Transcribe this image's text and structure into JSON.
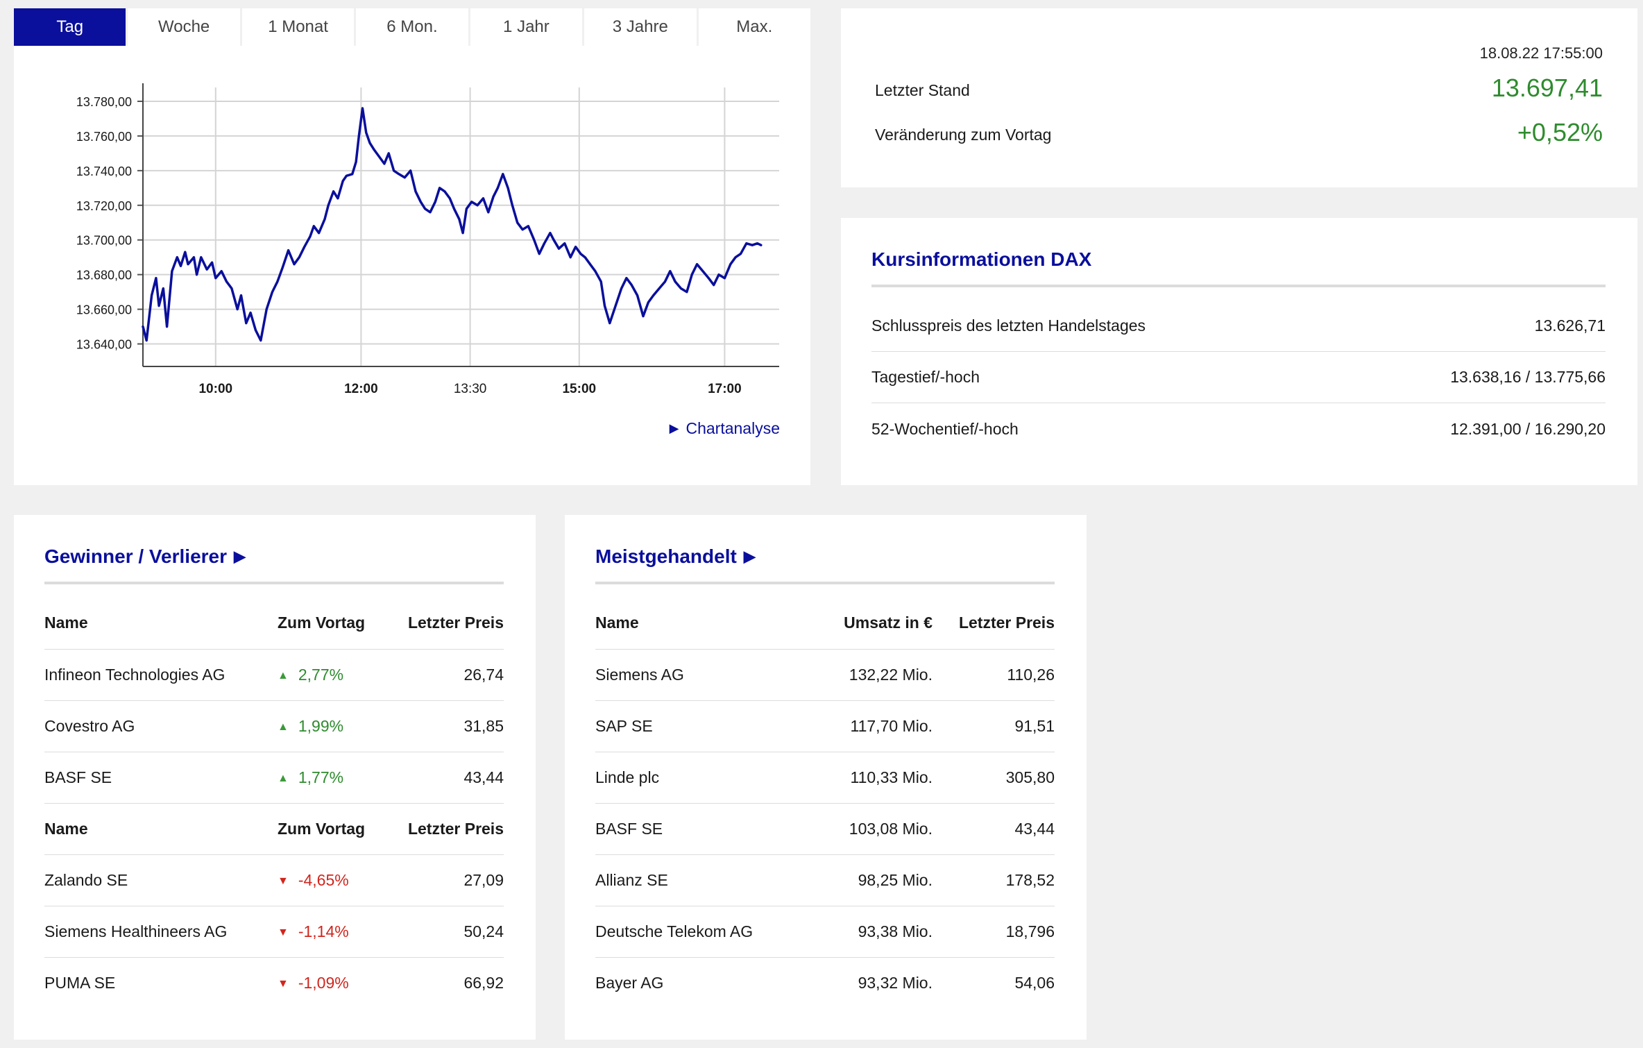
{
  "chart_panel": {
    "tabs": [
      {
        "label": "Tag",
        "active": true
      },
      {
        "label": "Woche",
        "active": false
      },
      {
        "label": "1 Monat",
        "active": false
      },
      {
        "label": "6 Mon.",
        "active": false
      },
      {
        "label": "1 Jahr",
        "active": false
      },
      {
        "label": "3 Jahre",
        "active": false
      },
      {
        "label": "Max.",
        "active": false
      }
    ],
    "link_label": "Chartanalyse",
    "link_icon": "triangle-right-icon"
  },
  "chart_data": {
    "type": "line",
    "title": "",
    "xlabel": "",
    "ylabel": "",
    "x_ticks": [
      {
        "time": "10:00",
        "x": 10.0,
        "bold": true
      },
      {
        "time": "12:00",
        "x": 12.0,
        "bold": true
      },
      {
        "time": "13:30",
        "x": 13.5,
        "bold": false
      },
      {
        "time": "15:00",
        "x": 15.0,
        "bold": true
      },
      {
        "time": "17:00",
        "x": 17.0,
        "bold": true
      }
    ],
    "y_ticks": [
      {
        "label": "13.640,00",
        "value": 13640
      },
      {
        "label": "13.660,00",
        "value": 13660
      },
      {
        "label": "13.680,00",
        "value": 13680
      },
      {
        "label": "13.700,00",
        "value": 13700
      },
      {
        "label": "13.720,00",
        "value": 13720
      },
      {
        "label": "13.740,00",
        "value": 13740
      },
      {
        "label": "13.760,00",
        "value": 13760
      },
      {
        "label": "13.780,00",
        "value": 13780
      }
    ],
    "xlim": [
      9.0,
      17.75
    ],
    "ylim": [
      13627,
      13788
    ],
    "grid": true,
    "line_color": "#0a0f9c",
    "series": [
      {
        "points": [
          [
            9.0,
            13650
          ],
          [
            9.05,
            13642
          ],
          [
            9.12,
            13668
          ],
          [
            9.18,
            13678
          ],
          [
            9.22,
            13662
          ],
          [
            9.28,
            13672
          ],
          [
            9.33,
            13650
          ],
          [
            9.4,
            13682
          ],
          [
            9.47,
            13690
          ],
          [
            9.52,
            13685
          ],
          [
            9.58,
            13693
          ],
          [
            9.62,
            13686
          ],
          [
            9.7,
            13690
          ],
          [
            9.74,
            13680
          ],
          [
            9.8,
            13690
          ],
          [
            9.88,
            13683
          ],
          [
            9.95,
            13687
          ],
          [
            10.0,
            13678
          ],
          [
            10.08,
            13682
          ],
          [
            10.15,
            13676
          ],
          [
            10.22,
            13672
          ],
          [
            10.3,
            13660
          ],
          [
            10.35,
            13668
          ],
          [
            10.42,
            13652
          ],
          [
            10.48,
            13658
          ],
          [
            10.55,
            13648
          ],
          [
            10.62,
            13642
          ],
          [
            10.7,
            13660
          ],
          [
            10.78,
            13670
          ],
          [
            10.85,
            13676
          ],
          [
            10.92,
            13684
          ],
          [
            11.0,
            13694
          ],
          [
            11.08,
            13686
          ],
          [
            11.15,
            13690
          ],
          [
            11.22,
            13696
          ],
          [
            11.3,
            13702
          ],
          [
            11.35,
            13708
          ],
          [
            11.42,
            13704
          ],
          [
            11.5,
            13712
          ],
          [
            11.55,
            13720
          ],
          [
            11.62,
            13728
          ],
          [
            11.68,
            13724
          ],
          [
            11.75,
            13734
          ],
          [
            11.8,
            13737
          ],
          [
            11.88,
            13738
          ],
          [
            11.93,
            13745
          ],
          [
            11.97,
            13760
          ],
          [
            12.02,
            13776
          ],
          [
            12.07,
            13762
          ],
          [
            12.12,
            13756
          ],
          [
            12.18,
            13752
          ],
          [
            12.25,
            13748
          ],
          [
            12.32,
            13744
          ],
          [
            12.38,
            13750
          ],
          [
            12.45,
            13740
          ],
          [
            12.52,
            13738
          ],
          [
            12.6,
            13736
          ],
          [
            12.68,
            13740
          ],
          [
            12.75,
            13728
          ],
          [
            12.82,
            13722
          ],
          [
            12.88,
            13718
          ],
          [
            12.95,
            13716
          ],
          [
            13.02,
            13722
          ],
          [
            13.08,
            13730
          ],
          [
            13.15,
            13728
          ],
          [
            13.22,
            13724
          ],
          [
            13.28,
            13718
          ],
          [
            13.35,
            13712
          ],
          [
            13.4,
            13704
          ],
          [
            13.45,
            13718
          ],
          [
            13.52,
            13722
          ],
          [
            13.6,
            13720
          ],
          [
            13.68,
            13724
          ],
          [
            13.75,
            13716
          ],
          [
            13.82,
            13725
          ],
          [
            13.88,
            13730
          ],
          [
            13.95,
            13738
          ],
          [
            14.02,
            13730
          ],
          [
            14.08,
            13720
          ],
          [
            14.15,
            13710
          ],
          [
            14.22,
            13706
          ],
          [
            14.3,
            13708
          ],
          [
            14.38,
            13700
          ],
          [
            14.45,
            13692
          ],
          [
            14.52,
            13698
          ],
          [
            14.6,
            13704
          ],
          [
            14.65,
            13700
          ],
          [
            14.72,
            13695
          ],
          [
            14.8,
            13698
          ],
          [
            14.88,
            13690
          ],
          [
            14.95,
            13696
          ],
          [
            15.02,
            13692
          ],
          [
            15.08,
            13690
          ],
          [
            15.15,
            13686
          ],
          [
            15.22,
            13682
          ],
          [
            15.3,
            13676
          ],
          [
            15.35,
            13662
          ],
          [
            15.42,
            13652
          ],
          [
            15.5,
            13662
          ],
          [
            15.58,
            13672
          ],
          [
            15.65,
            13678
          ],
          [
            15.72,
            13674
          ],
          [
            15.8,
            13668
          ],
          [
            15.88,
            13656
          ],
          [
            15.95,
            13664
          ],
          [
            16.02,
            13668
          ],
          [
            16.1,
            13672
          ],
          [
            16.18,
            13676
          ],
          [
            16.25,
            13682
          ],
          [
            16.32,
            13676
          ],
          [
            16.4,
            13672
          ],
          [
            16.48,
            13670
          ],
          [
            16.55,
            13680
          ],
          [
            16.62,
            13686
          ],
          [
            16.7,
            13682
          ],
          [
            16.78,
            13678
          ],
          [
            16.85,
            13674
          ],
          [
            16.92,
            13680
          ],
          [
            17.0,
            13678
          ],
          [
            17.08,
            13686
          ],
          [
            17.15,
            13690
          ],
          [
            17.22,
            13692
          ],
          [
            17.3,
            13698
          ],
          [
            17.38,
            13697
          ],
          [
            17.45,
            13698
          ],
          [
            17.5,
            13697
          ]
        ]
      }
    ]
  },
  "quote": {
    "timestamp": "18.08.22 17:55:00",
    "last_label": "Letzter Stand",
    "last_value": "13.697,41",
    "change_label": "Veränderung zum Vortag",
    "change_value": "+0,52%",
    "value_color": "#2e8b2e"
  },
  "kurs": {
    "title": "Kursinformationen DAX",
    "rows": [
      {
        "label": "Schlusspreis des letzten Handelstages",
        "value": "13.626,71"
      },
      {
        "label": "Tagestief/-hoch",
        "value": "13.638,16 / 13.775,66"
      },
      {
        "label": "52-Wochentief/-hoch",
        "value": "12.391,00 / 16.290,20"
      }
    ]
  },
  "gewinner": {
    "title": "Gewinner / Verlierer",
    "title_icon": "triangle-right-icon",
    "headers": {
      "name": "Name",
      "change": "Zum Vortag",
      "price": "Letzter Preis"
    },
    "winners": [
      {
        "name": "Infineon Technologies AG",
        "change": "2,77%",
        "price": "26,74"
      },
      {
        "name": "Covestro AG",
        "change": "1,99%",
        "price": "31,85"
      },
      {
        "name": "BASF SE",
        "change": "1,77%",
        "price": "43,44"
      }
    ],
    "losers": [
      {
        "name": "Zalando SE",
        "change": "-4,65%",
        "price": "27,09"
      },
      {
        "name": "Siemens Healthineers AG",
        "change": "-1,14%",
        "price": "50,24"
      },
      {
        "name": "PUMA SE",
        "change": "-1,09%",
        "price": "66,92"
      }
    ],
    "up_color": "#2e8b2e",
    "down_color": "#d0261d"
  },
  "meist": {
    "title": "Meistgehandelt",
    "title_icon": "triangle-right-icon",
    "headers": {
      "name": "Name",
      "volume": "Umsatz in €",
      "price": "Letzter Preis"
    },
    "rows": [
      {
        "name": "Siemens AG",
        "volume": "132,22 Mio.",
        "price": "110,26"
      },
      {
        "name": "SAP SE",
        "volume": "117,70 Mio.",
        "price": "91,51"
      },
      {
        "name": "Linde plc",
        "volume": "110,33 Mio.",
        "price": "305,80"
      },
      {
        "name": "BASF SE",
        "volume": "103,08 Mio.",
        "price": "43,44"
      },
      {
        "name": "Allianz SE",
        "volume": "98,25 Mio.",
        "price": "178,52"
      },
      {
        "name": "Deutsche Telekom AG",
        "volume": "93,38 Mio.",
        "price": "18,796"
      },
      {
        "name": "Bayer AG",
        "volume": "93,32 Mio.",
        "price": "54,06"
      }
    ]
  }
}
